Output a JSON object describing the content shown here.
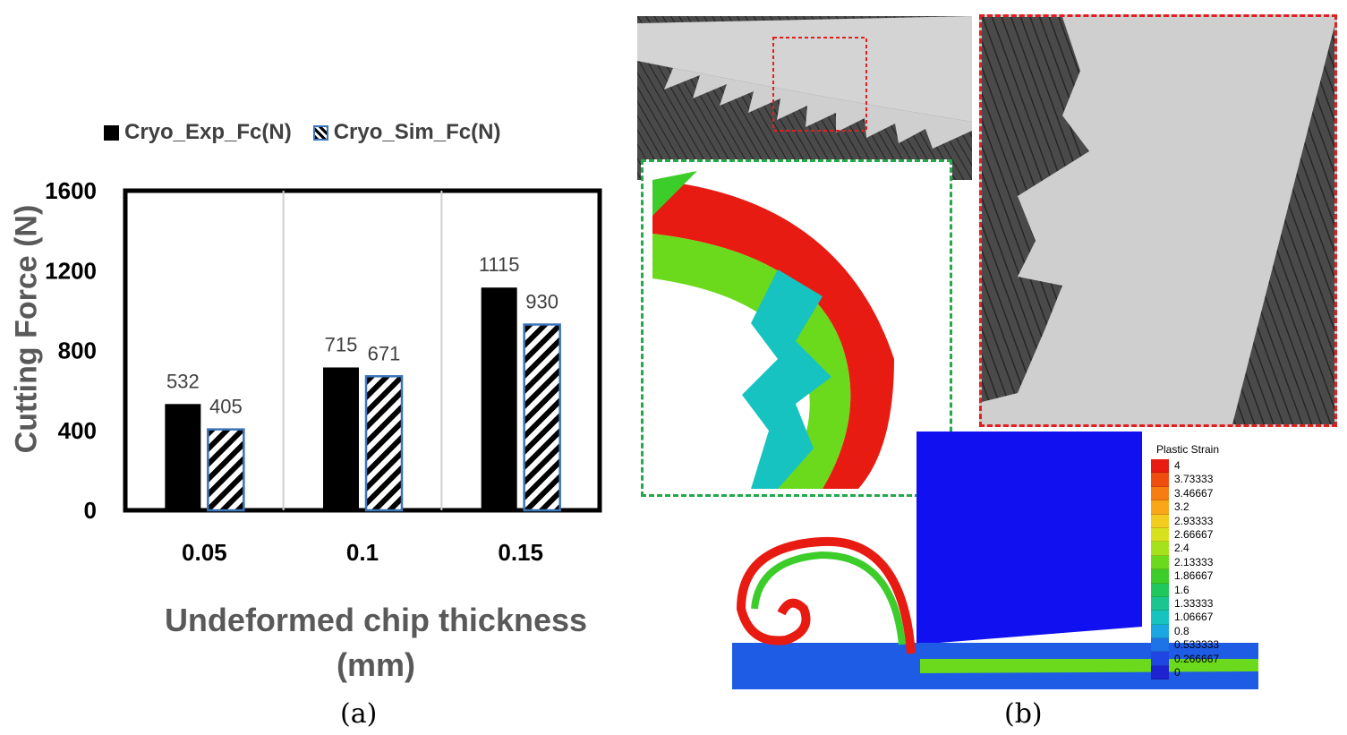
{
  "chart_data": {
    "type": "bar",
    "categories": [
      "0.05",
      "0.1",
      "0.15"
    ],
    "series": [
      {
        "name": "Cryo_Exp_Fc(N)",
        "values": [
          532,
          715,
          1115
        ],
        "color": "#000000",
        "pattern": "solid"
      },
      {
        "name": "Cryo_Sim_Fc(N)",
        "values": [
          405,
          671,
          930
        ],
        "color": "#3b74b8",
        "pattern": "diagonal-hatch"
      }
    ],
    "data_labels": [
      [
        "532",
        "715",
        "1115"
      ],
      [
        "405",
        "671",
        "930"
      ]
    ],
    "xlabel": "Undeformed chip thickness (mm)",
    "ylabel": "Cutting Force (N)",
    "ylim": [
      0,
      1600
    ],
    "yticks": [
      "0",
      "400",
      "800",
      "1200",
      "1600"
    ],
    "grid": "vertical",
    "legend": "top"
  },
  "captions": {
    "a": "(a)",
    "b": "(b)"
  },
  "simulation": {
    "legend_title": "Plastic Strain",
    "scale": [
      "4",
      "3.73333",
      "3.46667",
      "3.2",
      "2.93333",
      "2.66667",
      "2.4",
      "2.13333",
      "1.86667",
      "1.6",
      "1.33333",
      "1.06667",
      "0.8",
      "0.533333",
      "0.266667",
      "0"
    ],
    "scale_colors": [
      "#e81b12",
      "#ef4c10",
      "#f57d12",
      "#f9a619",
      "#f2cc1e",
      "#d9e11f",
      "#a5e21c",
      "#6bd91c",
      "#3ccd2a",
      "#1fc85c",
      "#1ac58f",
      "#17c3c0",
      "#1aa6e0",
      "#1e73e6",
      "#1f45e3",
      "#1e22cf"
    ]
  }
}
